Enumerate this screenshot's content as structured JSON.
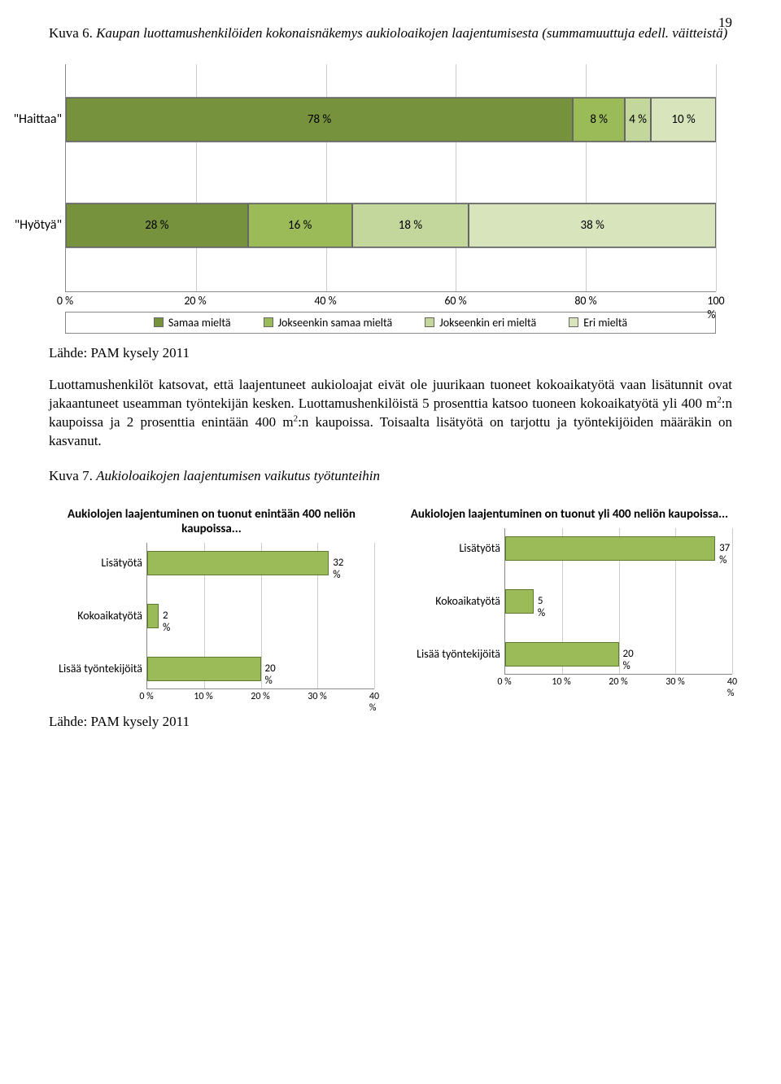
{
  "page_number": "19",
  "fig6_title_prefix": "Kuva 6. ",
  "fig6_title_body": "Kaupan luottamushenkilöiden kokonaisnäkemys aukioloaikojen laajentumisesta (summamuuttuja edell. väitteistä)",
  "chart1": {
    "categories": [
      {
        "label": "\"Haittaa\"",
        "segments": [
          78,
          8,
          4,
          10
        ]
      },
      {
        "label": "\"Hyötyä\"",
        "segments": [
          28,
          16,
          18,
          38
        ]
      }
    ],
    "segment_texts": [
      [
        "78 %",
        "8 %",
        "4 %",
        "10 %"
      ],
      [
        "28 %",
        "16 %",
        "18 %",
        "38 %"
      ]
    ],
    "colors": [
      "#76923c",
      "#9bbb59",
      "#c3d69b",
      "#d7e4bc"
    ],
    "x_ticks": [
      "0 %",
      "20 %",
      "40 %",
      "60 %",
      "80 %",
      "100 %"
    ],
    "x_tick_pos": [
      0,
      20,
      40,
      60,
      80,
      100
    ],
    "legend": [
      "Samaa mieltä",
      "Jokseenkin samaa mieltä",
      "Jokseenkin eri mieltä",
      "Eri mieltä"
    ]
  },
  "source_text": "Lähde: PAM kysely 2011",
  "body_para_1": "Luottamushenkilöt katsovat, että laajentuneet aukioloajat eivät ole juurikaan tuoneet kokoaikatyötä vaan lisätunnit ovat jakaantuneet useamman työntekijän kesken. Luottamushenkilöistä 5 prosenttia katsoo tuoneen kokoaikatyötä yli 400 m",
  "body_para_2": ":n kaupoissa ja 2 prosenttia enintään 400 m",
  "body_para_3": ":n kaupoissa. Toisaalta lisätyötä on tarjottu ja työntekijöiden määräkin on kasvanut.",
  "sup_2": "2",
  "fig7_title_prefix": "Kuva 7. ",
  "fig7_title_body": "Aukioloaikojen laajentumisen vaikutus työtunteihin",
  "small_left": {
    "title": "Aukiolojen laajentuminen on tuonut enintään 400 neliön kaupoissa...",
    "bars": [
      {
        "label": "Lisätyötä",
        "value": 32,
        "text": "32 %"
      },
      {
        "label": "Kokoaikatyötä",
        "value": 2,
        "text": "2 %"
      },
      {
        "label": "Lisää työntekijöitä",
        "value": 20,
        "text": "20 %"
      }
    ],
    "xmax": 40,
    "x_ticks": [
      "0 %",
      "10 %",
      "20 %",
      "30 %",
      "40 %"
    ],
    "x_tick_pos": [
      0,
      10,
      20,
      30,
      40
    ],
    "bar_color": "#9bbb59"
  },
  "small_right": {
    "title": "Aukiolojen laajentuminen on tuonut yli 400 neliön kaupoissa...",
    "bars": [
      {
        "label": "Lisätyötä",
        "value": 37,
        "text": "37 %"
      },
      {
        "label": "Kokoaikatyötä",
        "value": 5,
        "text": "5 %"
      },
      {
        "label": "Lisää työntekijöitä",
        "value": 20,
        "text": "20 %"
      }
    ],
    "xmax": 40,
    "x_ticks": [
      "0 %",
      "10 %",
      "20 %",
      "30 %",
      "40 %"
    ],
    "x_tick_pos": [
      0,
      10,
      20,
      30,
      40
    ],
    "bar_color": "#9bbb59"
  },
  "source_text_2": "Lähde: PAM kysely 2011"
}
